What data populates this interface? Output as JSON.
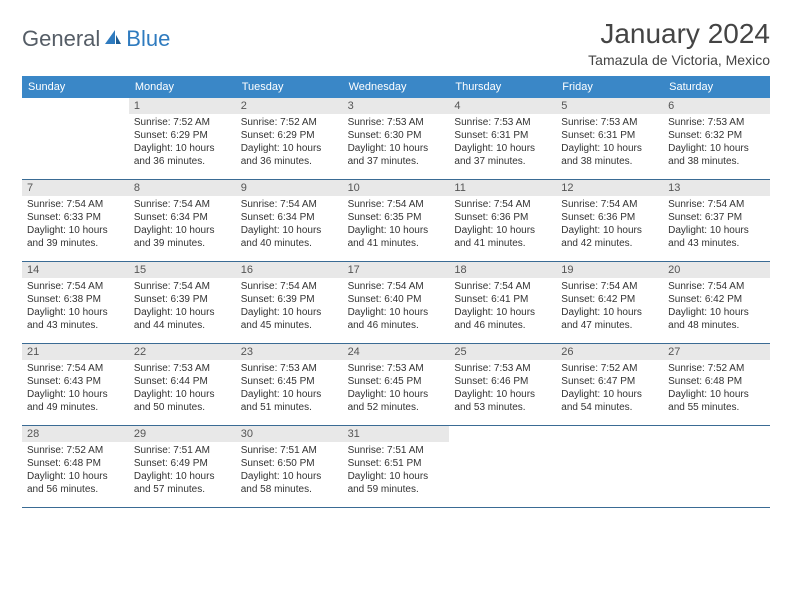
{
  "brand": {
    "general": "General",
    "blue": "Blue"
  },
  "title": {
    "month": "January 2024",
    "location": "Tamazula de Victoria, Mexico"
  },
  "colors": {
    "header_bg": "#3a87c7",
    "header_text": "#ffffff",
    "daynum_bg": "#e8e8e8",
    "row_border": "#3a6b94",
    "logo_gray": "#555d66",
    "logo_blue": "#2f7bbf"
  },
  "daysOfWeek": [
    "Sunday",
    "Monday",
    "Tuesday",
    "Wednesday",
    "Thursday",
    "Friday",
    "Saturday"
  ],
  "layout": {
    "columns": 7,
    "rows": 5,
    "startOffset": 1
  },
  "days": [
    {
      "n": 1,
      "sunrise": "7:52 AM",
      "sunset": "6:29 PM",
      "daylight": "10 hours and 36 minutes."
    },
    {
      "n": 2,
      "sunrise": "7:52 AM",
      "sunset": "6:29 PM",
      "daylight": "10 hours and 36 minutes."
    },
    {
      "n": 3,
      "sunrise": "7:53 AM",
      "sunset": "6:30 PM",
      "daylight": "10 hours and 37 minutes."
    },
    {
      "n": 4,
      "sunrise": "7:53 AM",
      "sunset": "6:31 PM",
      "daylight": "10 hours and 37 minutes."
    },
    {
      "n": 5,
      "sunrise": "7:53 AM",
      "sunset": "6:31 PM",
      "daylight": "10 hours and 38 minutes."
    },
    {
      "n": 6,
      "sunrise": "7:53 AM",
      "sunset": "6:32 PM",
      "daylight": "10 hours and 38 minutes."
    },
    {
      "n": 7,
      "sunrise": "7:54 AM",
      "sunset": "6:33 PM",
      "daylight": "10 hours and 39 minutes."
    },
    {
      "n": 8,
      "sunrise": "7:54 AM",
      "sunset": "6:34 PM",
      "daylight": "10 hours and 39 minutes."
    },
    {
      "n": 9,
      "sunrise": "7:54 AM",
      "sunset": "6:34 PM",
      "daylight": "10 hours and 40 minutes."
    },
    {
      "n": 10,
      "sunrise": "7:54 AM",
      "sunset": "6:35 PM",
      "daylight": "10 hours and 41 minutes."
    },
    {
      "n": 11,
      "sunrise": "7:54 AM",
      "sunset": "6:36 PM",
      "daylight": "10 hours and 41 minutes."
    },
    {
      "n": 12,
      "sunrise": "7:54 AM",
      "sunset": "6:36 PM",
      "daylight": "10 hours and 42 minutes."
    },
    {
      "n": 13,
      "sunrise": "7:54 AM",
      "sunset": "6:37 PM",
      "daylight": "10 hours and 43 minutes."
    },
    {
      "n": 14,
      "sunrise": "7:54 AM",
      "sunset": "6:38 PM",
      "daylight": "10 hours and 43 minutes."
    },
    {
      "n": 15,
      "sunrise": "7:54 AM",
      "sunset": "6:39 PM",
      "daylight": "10 hours and 44 minutes."
    },
    {
      "n": 16,
      "sunrise": "7:54 AM",
      "sunset": "6:39 PM",
      "daylight": "10 hours and 45 minutes."
    },
    {
      "n": 17,
      "sunrise": "7:54 AM",
      "sunset": "6:40 PM",
      "daylight": "10 hours and 46 minutes."
    },
    {
      "n": 18,
      "sunrise": "7:54 AM",
      "sunset": "6:41 PM",
      "daylight": "10 hours and 46 minutes."
    },
    {
      "n": 19,
      "sunrise": "7:54 AM",
      "sunset": "6:42 PM",
      "daylight": "10 hours and 47 minutes."
    },
    {
      "n": 20,
      "sunrise": "7:54 AM",
      "sunset": "6:42 PM",
      "daylight": "10 hours and 48 minutes."
    },
    {
      "n": 21,
      "sunrise": "7:54 AM",
      "sunset": "6:43 PM",
      "daylight": "10 hours and 49 minutes."
    },
    {
      "n": 22,
      "sunrise": "7:53 AM",
      "sunset": "6:44 PM",
      "daylight": "10 hours and 50 minutes."
    },
    {
      "n": 23,
      "sunrise": "7:53 AM",
      "sunset": "6:45 PM",
      "daylight": "10 hours and 51 minutes."
    },
    {
      "n": 24,
      "sunrise": "7:53 AM",
      "sunset": "6:45 PM",
      "daylight": "10 hours and 52 minutes."
    },
    {
      "n": 25,
      "sunrise": "7:53 AM",
      "sunset": "6:46 PM",
      "daylight": "10 hours and 53 minutes."
    },
    {
      "n": 26,
      "sunrise": "7:52 AM",
      "sunset": "6:47 PM",
      "daylight": "10 hours and 54 minutes."
    },
    {
      "n": 27,
      "sunrise": "7:52 AM",
      "sunset": "6:48 PM",
      "daylight": "10 hours and 55 minutes."
    },
    {
      "n": 28,
      "sunrise": "7:52 AM",
      "sunset": "6:48 PM",
      "daylight": "10 hours and 56 minutes."
    },
    {
      "n": 29,
      "sunrise": "7:51 AM",
      "sunset": "6:49 PM",
      "daylight": "10 hours and 57 minutes."
    },
    {
      "n": 30,
      "sunrise": "7:51 AM",
      "sunset": "6:50 PM",
      "daylight": "10 hours and 58 minutes."
    },
    {
      "n": 31,
      "sunrise": "7:51 AM",
      "sunset": "6:51 PM",
      "daylight": "10 hours and 59 minutes."
    }
  ],
  "labels": {
    "sunrise": "Sunrise:",
    "sunset": "Sunset:",
    "daylight": "Daylight:"
  }
}
